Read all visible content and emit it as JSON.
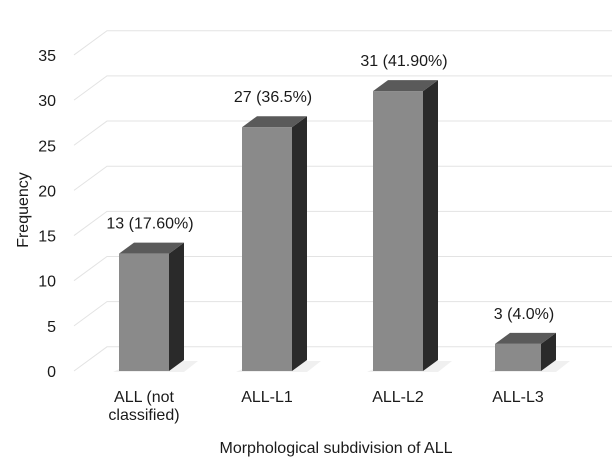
{
  "chart_data": {
    "type": "bar",
    "style": "3d-column",
    "categories": [
      "ALL (not classified)",
      "ALL-L1",
      "ALL-L2",
      "ALL-L3"
    ],
    "category_lines": [
      [
        "ALL (not",
        "classified)"
      ],
      [
        "ALL-L1"
      ],
      [
        "ALL-L2"
      ],
      [
        "ALL-L3"
      ]
    ],
    "values": [
      13,
      27,
      31,
      3
    ],
    "data_labels": [
      "13 (17.60%)",
      "27 (36.5%)",
      "31 (41.90%)",
      "3 (4.0%)"
    ],
    "xlabel": "Morphological subdivision of ALL",
    "ylabel": "Frequency",
    "ylim": [
      0,
      35
    ],
    "yticks": [
      "0",
      "5",
      "10",
      "15",
      "20",
      "25",
      "30",
      "35"
    ],
    "grid": true,
    "legend": "none",
    "colors": {
      "bar_front": "#8a8a8a",
      "bar_top": "#5a5a5a",
      "bar_side": "#2a2a2a",
      "grid": "#e3e3e3"
    }
  }
}
